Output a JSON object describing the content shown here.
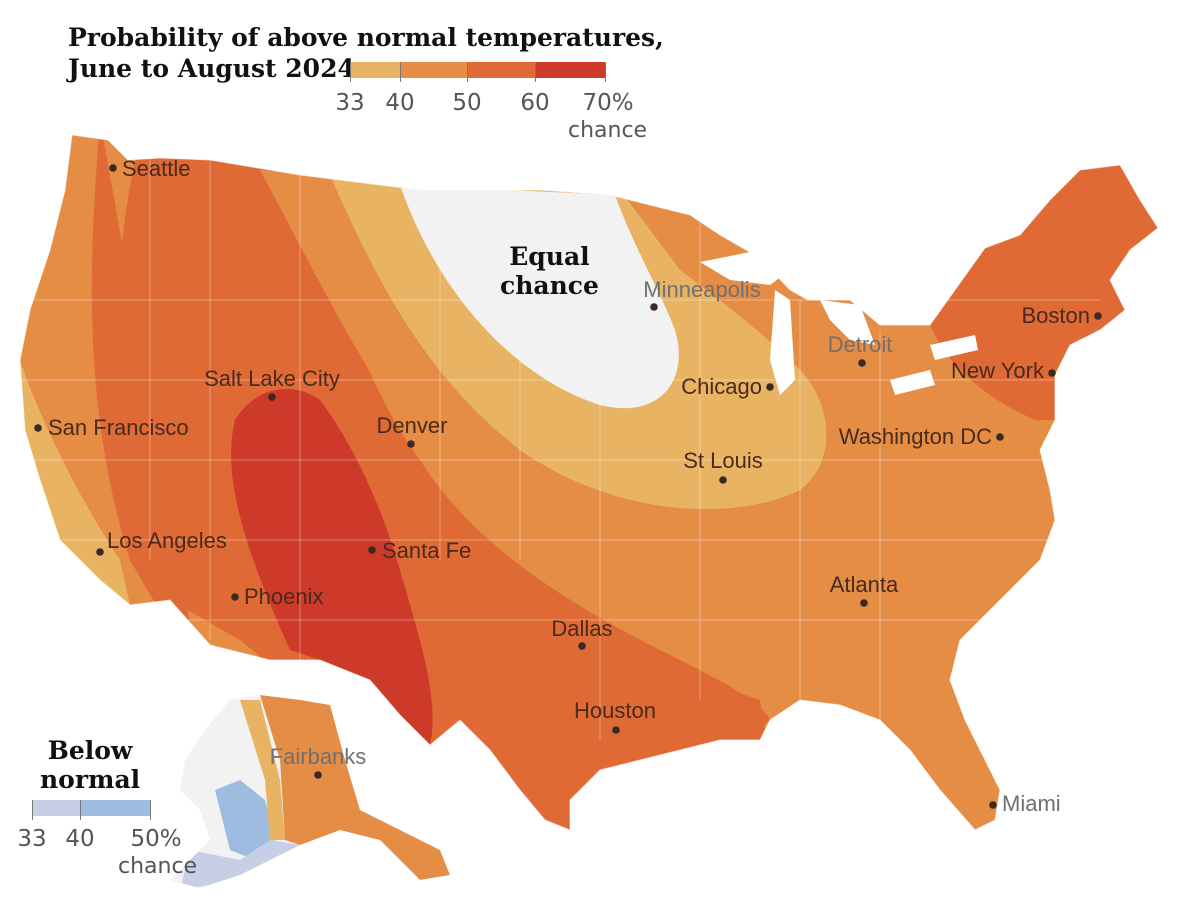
{
  "title": {
    "line1": "Probability of above normal temperatures,",
    "line2": "June to August 2024"
  },
  "above_legend": {
    "tick_labels": [
      "33",
      "40",
      "50",
      "60",
      "70%"
    ],
    "unit": "chance",
    "colors": [
      "#e8b463",
      "#e58c45",
      "#df6a35",
      "#ce3a2a"
    ]
  },
  "below_legend": {
    "title_line1": "Below",
    "title_line2": "normal",
    "tick_labels": [
      "33",
      "40",
      "50%"
    ],
    "unit": "chance",
    "colors": [
      "#c6cfe6",
      "#9ebbe0"
    ]
  },
  "regions": {
    "equal_line1": "Equal",
    "equal_line2": "chance"
  },
  "cities": [
    {
      "name": "Seattle",
      "style": "dark"
    },
    {
      "name": "San Francisco",
      "style": "dark"
    },
    {
      "name": "Los Angeles",
      "style": "dark"
    },
    {
      "name": "Phoenix",
      "style": "dark"
    },
    {
      "name": "Salt Lake City",
      "style": "dark"
    },
    {
      "name": "Denver",
      "style": "dark"
    },
    {
      "name": "Santa Fe",
      "style": "dark"
    },
    {
      "name": "Dallas",
      "style": "dark"
    },
    {
      "name": "Houston",
      "style": "dark"
    },
    {
      "name": "Minneapolis",
      "style": "grey"
    },
    {
      "name": "Chicago",
      "style": "dark"
    },
    {
      "name": "St Louis",
      "style": "dark"
    },
    {
      "name": "Detroit",
      "style": "grey"
    },
    {
      "name": "Washington DC",
      "style": "dark"
    },
    {
      "name": "New York",
      "style": "dark"
    },
    {
      "name": "Boston",
      "style": "dark"
    },
    {
      "name": "Atlanta",
      "style": "dark"
    },
    {
      "name": "Miami",
      "style": "grey"
    },
    {
      "name": "Fairbanks",
      "style": "grey"
    }
  ]
}
